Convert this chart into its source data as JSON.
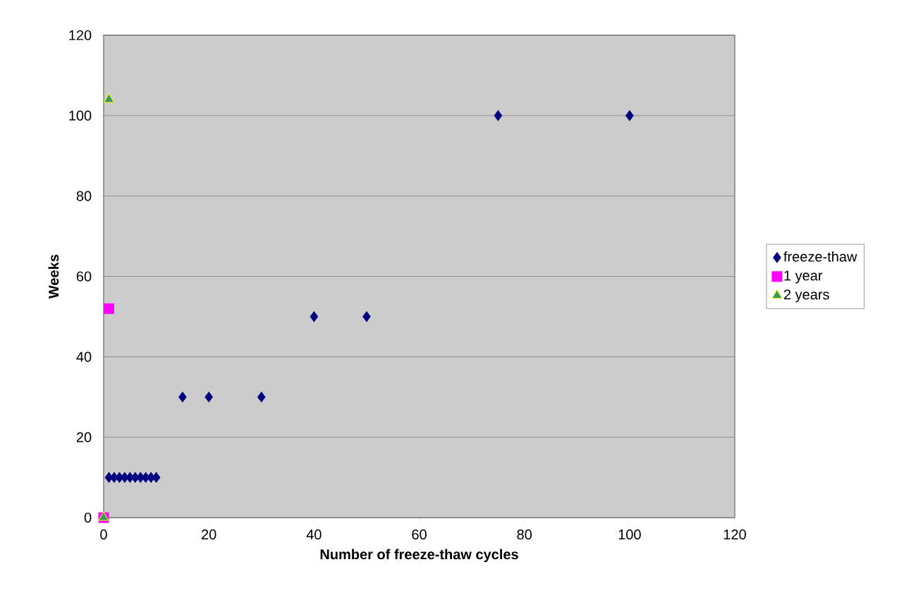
{
  "chart_data": {
    "type": "scatter",
    "xlabel": "Number of freeze-thaw cycles",
    "ylabel": "Weeks",
    "xlim": [
      0,
      120
    ],
    "ylim": [
      0,
      120
    ],
    "xticks": [
      0,
      20,
      40,
      60,
      80,
      100,
      120
    ],
    "yticks": [
      0,
      20,
      40,
      60,
      80,
      100,
      120
    ],
    "grid": "y",
    "legend": "right",
    "series": [
      {
        "name": "freeze-thaw",
        "color": "#000080",
        "marker": "diamond",
        "x": [
          1,
          2,
          3,
          4,
          5,
          6,
          7,
          8,
          9,
          10,
          15,
          20,
          30,
          40,
          50,
          75,
          100
        ],
        "values": [
          10,
          10,
          10,
          10,
          10,
          10,
          10,
          10,
          10,
          10,
          30,
          30,
          30,
          50,
          50,
          100,
          100
        ]
      },
      {
        "name": "1 year",
        "color": "#ff00ff",
        "marker": "square",
        "x": [
          0,
          1
        ],
        "values": [
          0,
          52
        ]
      },
      {
        "name": "2 years",
        "color": "#339966",
        "marker": "triangle",
        "x": [
          0,
          1
        ],
        "values": [
          0,
          104
        ]
      }
    ]
  }
}
